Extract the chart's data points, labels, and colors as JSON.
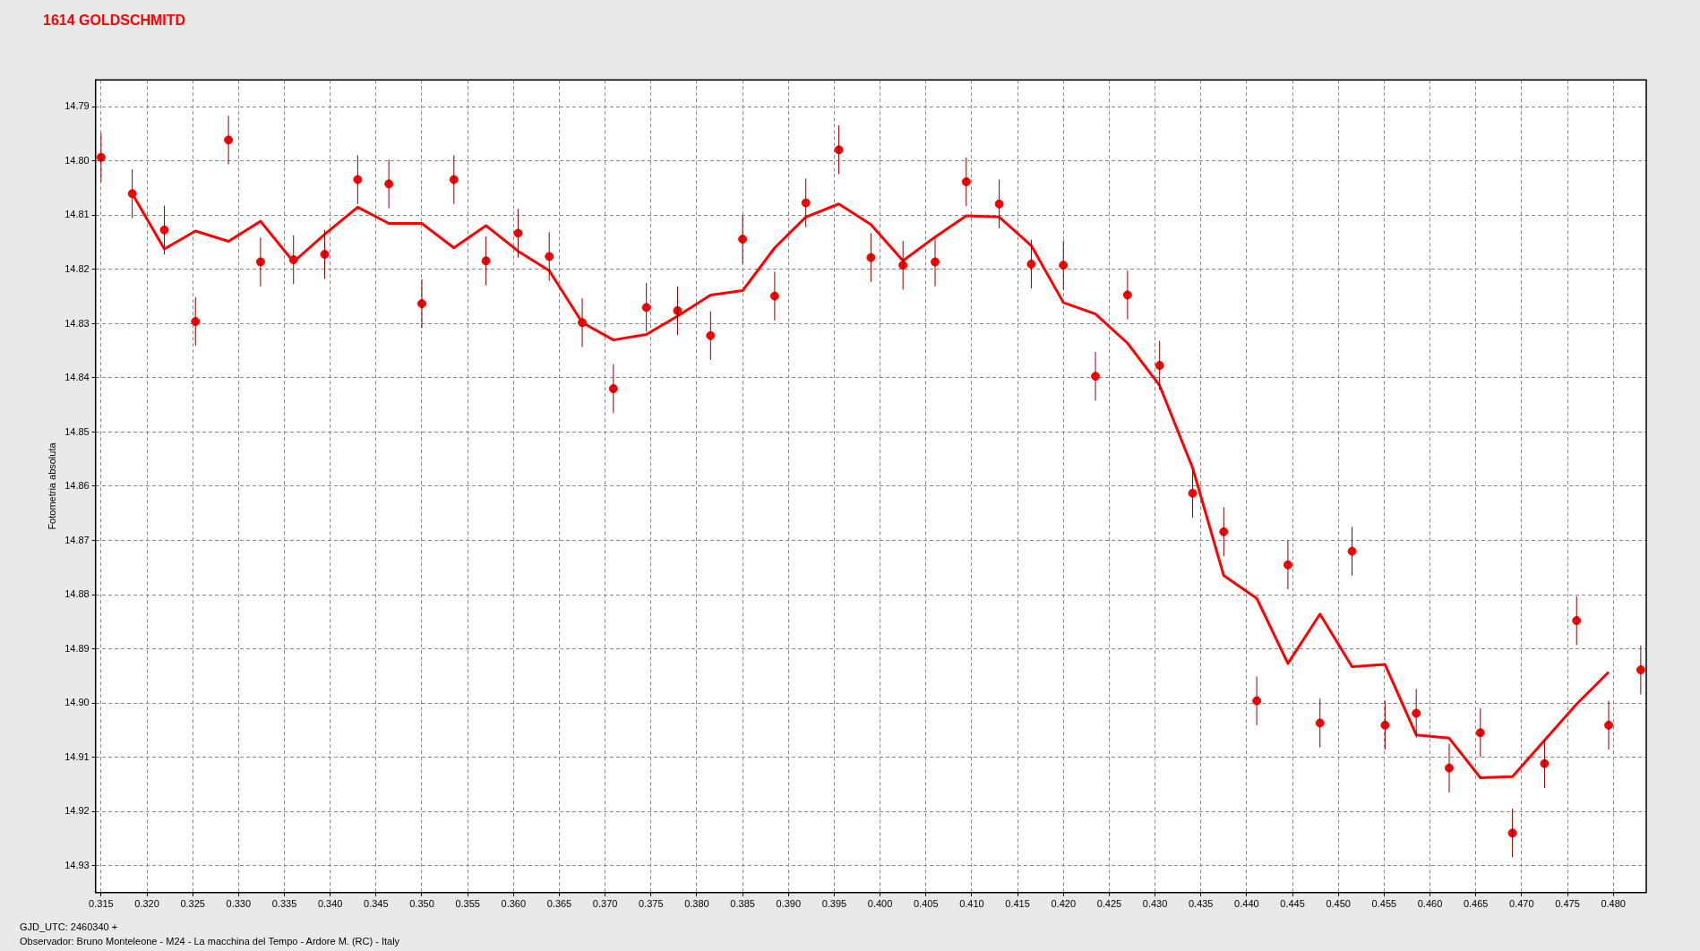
{
  "chart_data": {
    "type": "scatter",
    "title": "1614 GOLDSCHMITD",
    "ylabel": "Fotometria absoluta",
    "annotations": [
      "GJD_UTC: 2460340 +",
      "Observador: Bruno Monteleone - M24 - La macchina del Tempo - Ardore M. (RC) - Italy"
    ],
    "xlim": [
      0.3144,
      0.4836
    ],
    "ylim": [
      14.935,
      14.785
    ],
    "xticks": [
      {
        "value": 0.315,
        "label": "0.315"
      },
      {
        "value": 0.32,
        "label": "0.320"
      },
      {
        "value": 0.325,
        "label": "0.325"
      },
      {
        "value": 0.33,
        "label": "0.330"
      },
      {
        "value": 0.335,
        "label": "0.335"
      },
      {
        "value": 0.34,
        "label": "0.340"
      },
      {
        "value": 0.345,
        "label": "0.345"
      },
      {
        "value": 0.35,
        "label": "0.350"
      },
      {
        "value": 0.355,
        "label": "0.355"
      },
      {
        "value": 0.36,
        "label": "0.360"
      },
      {
        "value": 0.365,
        "label": "0.365"
      },
      {
        "value": 0.37,
        "label": "0.370"
      },
      {
        "value": 0.375,
        "label": "0.375"
      },
      {
        "value": 0.38,
        "label": "0.380"
      },
      {
        "value": 0.385,
        "label": "0.385"
      },
      {
        "value": 0.39,
        "label": "0.390"
      },
      {
        "value": 0.395,
        "label": "0.395"
      },
      {
        "value": 0.4,
        "label": "0.400"
      },
      {
        "value": 0.405,
        "label": "0.405"
      },
      {
        "value": 0.41,
        "label": "0.410"
      },
      {
        "value": 0.415,
        "label": "0.415"
      },
      {
        "value": 0.42,
        "label": "0.420"
      },
      {
        "value": 0.425,
        "label": "0.425"
      },
      {
        "value": 0.43,
        "label": "0.430"
      },
      {
        "value": 0.435,
        "label": "0.435"
      },
      {
        "value": 0.44,
        "label": "0.440"
      },
      {
        "value": 0.445,
        "label": "0.445"
      },
      {
        "value": 0.45,
        "label": "0.450"
      },
      {
        "value": 0.455,
        "label": "0.455"
      },
      {
        "value": 0.46,
        "label": "0.460"
      },
      {
        "value": 0.465,
        "label": "0.465"
      },
      {
        "value": 0.47,
        "label": "0.470"
      },
      {
        "value": 0.475,
        "label": "0.475"
      },
      {
        "value": 0.48,
        "label": "0.480"
      }
    ],
    "yticks": [
      14.79,
      {
        "value": 14.8,
        "label": "14.80"
      },
      14.81,
      14.82,
      14.83,
      14.84,
      14.85,
      14.86,
      14.87,
      14.88,
      14.89,
      {
        "value": 14.9,
        "label": "14.90"
      },
      14.91,
      14.92,
      14.93
    ],
    "grid": true,
    "legend": false,
    "series": [
      {
        "marker": "circle",
        "color": "#ff0000",
        "x": [
          0.315,
          0.3184,
          0.3219,
          0.3253,
          0.3289,
          0.3324,
          0.336,
          0.3394,
          0.343,
          0.3464,
          0.35,
          0.3535,
          0.357,
          0.3605,
          0.3639,
          0.3675,
          0.3709,
          0.3745,
          0.3779,
          0.3815,
          0.385,
          0.3885,
          0.3919,
          0.3955,
          0.399,
          0.4025,
          0.406,
          0.4094,
          0.413,
          0.4165,
          0.42,
          0.4235,
          0.427,
          0.4305,
          0.4341,
          0.4375,
          0.4411,
          0.4445,
          0.448,
          0.4515,
          0.4551,
          0.4585,
          0.4621,
          0.4655,
          0.469,
          0.4725,
          0.476,
          0.4795,
          0.483
        ],
        "values": [
          14.7993,
          14.806,
          14.8127,
          14.8296,
          14.7961,
          14.8186,
          14.8182,
          14.8172,
          14.8034,
          14.8042,
          14.8263,
          14.8034,
          14.8184,
          14.8133,
          14.8176,
          14.8298,
          14.842,
          14.827,
          14.8276,
          14.8322,
          14.8144,
          14.8249,
          14.8077,
          14.7979,
          14.8178,
          14.8192,
          14.8186,
          14.8038,
          14.8079,
          14.819,
          14.8192,
          14.8397,
          14.8247,
          14.8377,
          14.8613,
          14.8684,
          14.8996,
          14.8745,
          14.9037,
          14.872,
          14.9041,
          14.9019,
          14.912,
          14.9055,
          14.924,
          14.9112,
          14.8848,
          14.9041,
          14.8939
        ],
        "errors": [
          0.0045,
          0.0045,
          0.0045,
          0.0045,
          0.0045,
          0.0045,
          0.0045,
          0.0045,
          0.0045,
          0.0045,
          0.0045,
          0.0045,
          0.0045,
          0.0045,
          0.0045,
          0.0045,
          0.0045,
          0.0045,
          0.0045,
          0.0045,
          0.0045,
          0.0045,
          0.0045,
          0.0045,
          0.0045,
          0.0045,
          0.0045,
          0.0045,
          0.0045,
          0.0045,
          0.0045,
          0.0045,
          0.0045,
          0.0045,
          0.0045,
          0.0045,
          0.0045,
          0.0045,
          0.0045,
          0.0045,
          0.0045,
          0.0045,
          0.0045,
          0.0045,
          0.0045,
          0.0045,
          0.0045,
          0.0045,
          0.0045
        ]
      },
      {
        "type": "line",
        "marker": "none",
        "color": "#ff0000",
        "x": [
          0.3184,
          0.3219,
          0.3253,
          0.3289,
          0.3324,
          0.336,
          0.3394,
          0.343,
          0.3464,
          0.35,
          0.3535,
          0.357,
          0.3605,
          0.3639,
          0.3675,
          0.3709,
          0.3745,
          0.3779,
          0.3815,
          0.385,
          0.3885,
          0.3919,
          0.3955,
          0.399,
          0.4025,
          0.406,
          0.4094,
          0.413,
          0.4165,
          0.42,
          0.4235,
          0.427,
          0.4305,
          0.4341,
          0.4375,
          0.4411,
          0.4445,
          0.448,
          0.4515,
          0.4551,
          0.4585,
          0.4621,
          0.4655,
          0.469,
          0.4725,
          0.476,
          0.4795
        ],
        "values": [
          14.806,
          14.8162,
          14.8129,
          14.8148,
          14.8111,
          14.8186,
          14.8135,
          14.8085,
          14.8115,
          14.8115,
          14.816,
          14.8119,
          14.8166,
          14.8202,
          14.8298,
          14.833,
          14.832,
          14.8286,
          14.8247,
          14.8239,
          14.816,
          14.8103,
          14.8079,
          14.8117,
          14.8184,
          14.814,
          14.8101,
          14.8103,
          14.8156,
          14.8261,
          14.8282,
          14.8336,
          14.8414,
          14.8566,
          14.8765,
          14.8807,
          14.8927,
          14.8836,
          14.8933,
          14.8929,
          14.9059,
          14.9065,
          14.9138,
          14.9136,
          14.9069,
          14.9002,
          14.8943
        ]
      }
    ]
  }
}
